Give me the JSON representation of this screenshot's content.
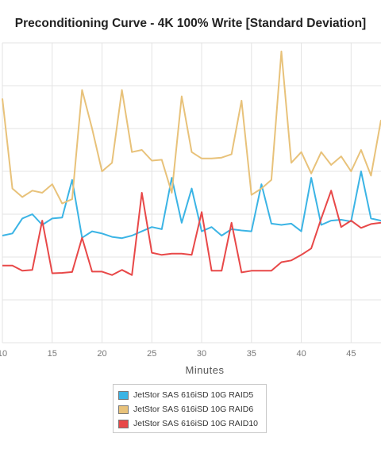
{
  "chart_data": {
    "type": "line",
    "title": "Preconditioning Curve - 4K 100% Write [Standard Deviation]",
    "xlabel": "Minutes",
    "ylabel": "",
    "xlim": [
      10,
      48
    ],
    "ylim": [
      0,
      7
    ],
    "x_ticks": [
      10,
      15,
      20,
      25,
      30,
      35,
      40,
      45
    ],
    "grid": true,
    "legend_position": "bottom",
    "x": [
      10,
      11,
      12,
      13,
      14,
      15,
      16,
      17,
      18,
      19,
      20,
      21,
      22,
      23,
      24,
      25,
      26,
      27,
      28,
      29,
      30,
      31,
      32,
      33,
      34,
      35,
      36,
      37,
      38,
      39,
      40,
      41,
      42,
      43,
      44,
      45,
      46,
      47,
      48
    ],
    "series": [
      {
        "name": "JetStor SAS 616iSD 10G RAID5",
        "color": "#3bb4e5",
        "values": [
          2.5,
          2.55,
          2.9,
          3.0,
          2.75,
          2.9,
          2.92,
          3.8,
          2.45,
          2.6,
          2.55,
          2.47,
          2.44,
          2.5,
          2.6,
          2.7,
          2.65,
          3.85,
          2.8,
          3.6,
          2.6,
          2.7,
          2.5,
          2.65,
          2.62,
          2.6,
          3.7,
          2.78,
          2.75,
          2.78,
          2.6,
          3.85,
          2.75,
          2.85,
          2.87,
          2.83,
          4.0,
          2.9,
          2.85
        ]
      },
      {
        "name": "JetStor SAS 616iSD 10G RAID6",
        "color": "#e8c27a",
        "values": [
          5.7,
          3.6,
          3.4,
          3.55,
          3.5,
          3.7,
          3.25,
          3.35,
          5.9,
          5.0,
          4.0,
          4.2,
          5.9,
          4.45,
          4.5,
          4.25,
          4.27,
          3.5,
          5.75,
          4.45,
          4.3,
          4.3,
          4.32,
          4.4,
          5.65,
          3.45,
          3.6,
          3.8,
          6.8,
          4.2,
          4.45,
          3.95,
          4.45,
          4.15,
          4.35,
          4.0,
          4.5,
          3.9,
          5.2
        ]
      },
      {
        "name": "JetStor SAS 616iSD 10G RAID10",
        "color": "#e84848",
        "values": [
          1.8,
          1.8,
          1.68,
          1.7,
          2.85,
          1.62,
          1.63,
          1.65,
          2.45,
          1.66,
          1.66,
          1.58,
          1.7,
          1.58,
          3.5,
          2.1,
          2.05,
          2.08,
          2.08,
          2.05,
          3.05,
          1.68,
          1.68,
          2.8,
          1.64,
          1.68,
          1.68,
          1.68,
          1.88,
          1.92,
          2.05,
          2.2,
          2.9,
          3.55,
          2.7,
          2.85,
          2.68,
          2.77,
          2.8
        ]
      }
    ]
  }
}
